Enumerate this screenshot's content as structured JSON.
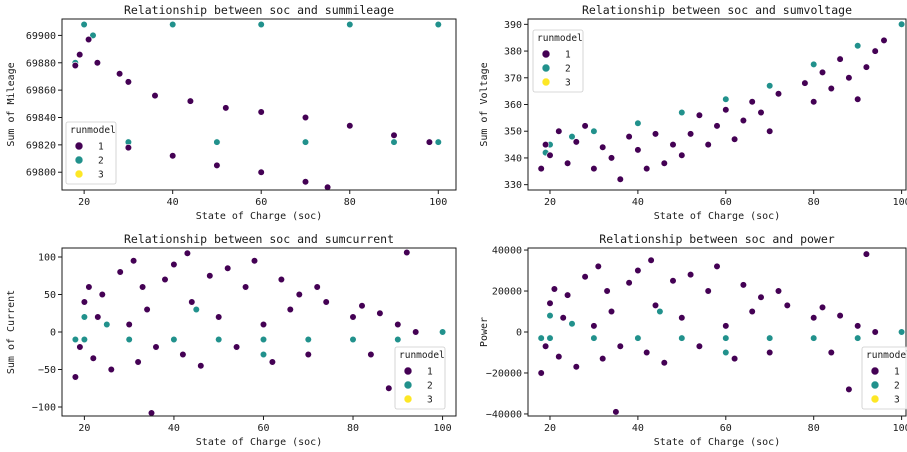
{
  "legend": {
    "title": "runmodel",
    "entries": [
      {
        "label": "1",
        "color": "#440154"
      },
      {
        "label": "2",
        "color": "#21918c"
      },
      {
        "label": "3",
        "color": "#fde725"
      }
    ]
  },
  "chart_data": [
    {
      "type": "scatter",
      "title": "Relationship between soc and summileage",
      "xlabel": "State of Charge (soc)",
      "ylabel": "Sum of Mileage",
      "xlim": [
        15,
        104
      ],
      "ylim": [
        69787,
        69912
      ],
      "xticks": [
        20,
        40,
        60,
        80,
        100
      ],
      "yticks": [
        69800,
        69820,
        69840,
        69860,
        69880,
        69900
      ],
      "legend_position": "lower-left",
      "grid": false,
      "series": [
        {
          "name": "2",
          "color": "#21918c",
          "points": [
            [
              20,
              69908
            ],
            [
              40,
              69908
            ],
            [
              60,
              69908
            ],
            [
              80,
              69908
            ],
            [
              100,
              69908
            ],
            [
              30,
              69822
            ],
            [
              50,
              69822
            ],
            [
              70,
              69822
            ],
            [
              90,
              69822
            ],
            [
              100,
              69822
            ],
            [
              18,
              69880
            ],
            [
              22,
              69900
            ],
            [
              30,
              69866
            ]
          ]
        },
        {
          "name": "1",
          "color": "#440154",
          "points": [
            [
              18,
              69878
            ],
            [
              19,
              69886
            ],
            [
              21,
              69897
            ],
            [
              23,
              69880
            ],
            [
              28,
              69872
            ],
            [
              30,
              69866
            ],
            [
              36,
              69856
            ],
            [
              44,
              69852
            ],
            [
              52,
              69847
            ],
            [
              60,
              69844
            ],
            [
              70,
              69840
            ],
            [
              80,
              69834
            ],
            [
              90,
              69827
            ],
            [
              98,
              69822
            ],
            [
              30,
              69818
            ],
            [
              40,
              69812
            ],
            [
              50,
              69805
            ],
            [
              60,
              69800
            ],
            [
              70,
              69793
            ],
            [
              75,
              69789
            ]
          ]
        }
      ]
    },
    {
      "type": "scatter",
      "title": "Relationship between soc and sumvoltage",
      "xlabel": "State of Charge (soc)",
      "ylabel": "Sum of Voltage",
      "xlim": [
        15,
        101
      ],
      "ylim": [
        328,
        392
      ],
      "xticks": [
        20,
        40,
        60,
        80,
        100
      ],
      "yticks": [
        330,
        340,
        350,
        360,
        370,
        380,
        390
      ],
      "legend_position": "upper-left",
      "grid": false,
      "series": [
        {
          "name": "2",
          "color": "#21918c",
          "points": [
            [
              19,
              342
            ],
            [
              20,
              345
            ],
            [
              25,
              348
            ],
            [
              30,
              350
            ],
            [
              40,
              353
            ],
            [
              50,
              357
            ],
            [
              60,
              362
            ],
            [
              70,
              367
            ],
            [
              80,
              375
            ],
            [
              90,
              382
            ],
            [
              100,
              390
            ]
          ]
        },
        {
          "name": "1",
          "color": "#440154",
          "points": [
            [
              18,
              336
            ],
            [
              19,
              345
            ],
            [
              20,
              341
            ],
            [
              22,
              350
            ],
            [
              24,
              338
            ],
            [
              26,
              346
            ],
            [
              28,
              352
            ],
            [
              30,
              336
            ],
            [
              32,
              344
            ],
            [
              34,
              340
            ],
            [
              36,
              332
            ],
            [
              38,
              348
            ],
            [
              40,
              343
            ],
            [
              42,
              336
            ],
            [
              44,
              349
            ],
            [
              46,
              338
            ],
            [
              48,
              345
            ],
            [
              50,
              341
            ],
            [
              52,
              349
            ],
            [
              54,
              356
            ],
            [
              56,
              345
            ],
            [
              58,
              352
            ],
            [
              60,
              358
            ],
            [
              62,
              347
            ],
            [
              64,
              354
            ],
            [
              66,
              361
            ],
            [
              68,
              357
            ],
            [
              70,
              350
            ],
            [
              72,
              364
            ],
            [
              78,
              368
            ],
            [
              80,
              361
            ],
            [
              82,
              372
            ],
            [
              84,
              366
            ],
            [
              86,
              377
            ],
            [
              88,
              370
            ],
            [
              90,
              362
            ],
            [
              92,
              374
            ],
            [
              94,
              380
            ],
            [
              96,
              384
            ]
          ]
        }
      ]
    },
    {
      "type": "scatter",
      "title": "Relationship between soc and sumcurrent",
      "xlabel": "State of Charge (soc)",
      "ylabel": "Sum of Current",
      "xlim": [
        15,
        103
      ],
      "ylim": [
        -112,
        112
      ],
      "xticks": [
        20,
        40,
        60,
        80,
        100
      ],
      "yticks": [
        -100,
        -50,
        0,
        50,
        100
      ],
      "legend_position": "lower-right",
      "grid": false,
      "series": [
        {
          "name": "2",
          "color": "#21918c",
          "points": [
            [
              18,
              -10
            ],
            [
              20,
              -10
            ],
            [
              30,
              -10
            ],
            [
              40,
              -10
            ],
            [
              50,
              -10
            ],
            [
              60,
              -10
            ],
            [
              70,
              -10
            ],
            [
              80,
              -10
            ],
            [
              90,
              -10
            ],
            [
              100,
              0
            ],
            [
              20,
              20
            ],
            [
              25,
              10
            ],
            [
              45,
              30
            ],
            [
              60,
              -30
            ]
          ]
        },
        {
          "name": "1",
          "color": "#440154",
          "points": [
            [
              18,
              -60
            ],
            [
              19,
              -20
            ],
            [
              20,
              40
            ],
            [
              21,
              60
            ],
            [
              22,
              -35
            ],
            [
              23,
              20
            ],
            [
              24,
              50
            ],
            [
              26,
              -50
            ],
            [
              28,
              80
            ],
            [
              30,
              10
            ],
            [
              31,
              95
            ],
            [
              32,
              -40
            ],
            [
              33,
              60
            ],
            [
              34,
              30
            ],
            [
              36,
              -20
            ],
            [
              38,
              70
            ],
            [
              40,
              90
            ],
            [
              42,
              -30
            ],
            [
              43,
              105
            ],
            [
              44,
              40
            ],
            [
              46,
              -45
            ],
            [
              48,
              75
            ],
            [
              50,
              20
            ],
            [
              52,
              85
            ],
            [
              54,
              -20
            ],
            [
              56,
              60
            ],
            [
              58,
              95
            ],
            [
              60,
              10
            ],
            [
              62,
              -40
            ],
            [
              64,
              70
            ],
            [
              66,
              30
            ],
            [
              68,
              50
            ],
            [
              70,
              -30
            ],
            [
              72,
              60
            ],
            [
              74,
              40
            ],
            [
              80,
              20
            ],
            [
              82,
              35
            ],
            [
              84,
              -30
            ],
            [
              86,
              25
            ],
            [
              88,
              -75
            ],
            [
              90,
              10
            ],
            [
              92,
              106
            ],
            [
              94,
              0
            ],
            [
              35,
              -108
            ]
          ]
        }
      ]
    },
    {
      "type": "scatter",
      "title": "Relationship between soc and power",
      "xlabel": "State of Charge (soc)",
      "ylabel": "Power",
      "xlim": [
        15,
        101
      ],
      "ylim": [
        -41000,
        41000
      ],
      "xticks": [
        20,
        40,
        60,
        80,
        100
      ],
      "yticks": [
        -40000,
        -20000,
        0,
        20000,
        40000
      ],
      "legend_position": "lower-right",
      "grid": false,
      "series": [
        {
          "name": "2",
          "color": "#21918c",
          "points": [
            [
              18,
              -3000
            ],
            [
              20,
              -3000
            ],
            [
              30,
              -3000
            ],
            [
              40,
              -3000
            ],
            [
              50,
              -3000
            ],
            [
              60,
              -3000
            ],
            [
              70,
              -3000
            ],
            [
              80,
              -3000
            ],
            [
              90,
              -3000
            ],
            [
              100,
              0
            ],
            [
              20,
              8000
            ],
            [
              25,
              4000
            ],
            [
              45,
              10000
            ],
            [
              60,
              -10000
            ]
          ]
        },
        {
          "name": "1",
          "color": "#440154",
          "points": [
            [
              18,
              -20000
            ],
            [
              19,
              -7000
            ],
            [
              20,
              14000
            ],
            [
              21,
              21000
            ],
            [
              22,
              -12000
            ],
            [
              23,
              7000
            ],
            [
              24,
              18000
            ],
            [
              26,
              -17000
            ],
            [
              28,
              27000
            ],
            [
              30,
              3000
            ],
            [
              31,
              32000
            ],
            [
              32,
              -13000
            ],
            [
              33,
              20000
            ],
            [
              34,
              10000
            ],
            [
              36,
              -7000
            ],
            [
              38,
              24000
            ],
            [
              40,
              30000
            ],
            [
              42,
              -10000
            ],
            [
              43,
              35000
            ],
            [
              44,
              13000
            ],
            [
              46,
              -15000
            ],
            [
              48,
              25000
            ],
            [
              50,
              7000
            ],
            [
              52,
              28000
            ],
            [
              54,
              -7000
            ],
            [
              56,
              20000
            ],
            [
              58,
              32000
            ],
            [
              60,
              3000
            ],
            [
              62,
              -13000
            ],
            [
              64,
              23000
            ],
            [
              66,
              10000
            ],
            [
              68,
              17000
            ],
            [
              70,
              -10000
            ],
            [
              72,
              20000
            ],
            [
              74,
              13000
            ],
            [
              80,
              7000
            ],
            [
              82,
              12000
            ],
            [
              84,
              -10000
            ],
            [
              86,
              8000
            ],
            [
              88,
              -28000
            ],
            [
              90,
              3000
            ],
            [
              92,
              38000
            ],
            [
              94,
              0
            ],
            [
              35,
              -39000
            ]
          ]
        }
      ]
    }
  ]
}
